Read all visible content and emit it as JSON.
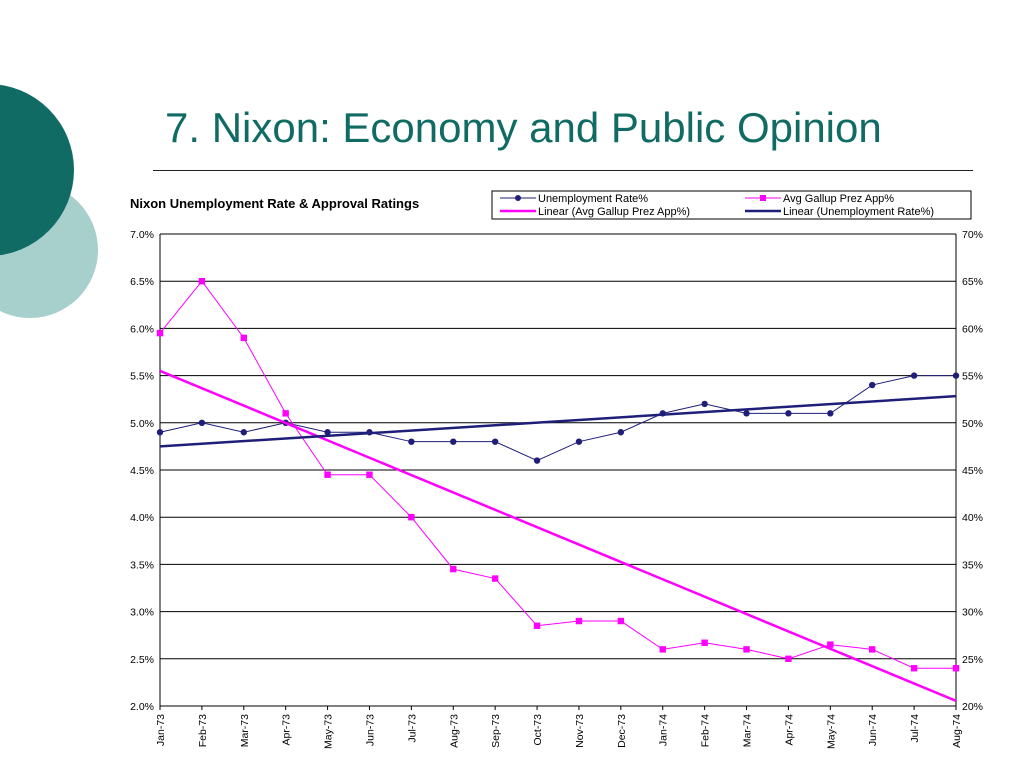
{
  "slide": {
    "title": "7. Nixon: Economy and Public Opinion",
    "accent_color": "#0f6b63",
    "accent_light": "#a7cfcc"
  },
  "chart_data": {
    "type": "line",
    "title": "Nixon Unemployment Rate & Approval Ratings",
    "categories": [
      "Jan-73",
      "Feb-73",
      "Mar-73",
      "Apr-73",
      "May-73",
      "Jun-73",
      "Jul-73",
      "Aug-73",
      "Sep-73",
      "Oct-73",
      "Nov-73",
      "Dec-73",
      "Jan-74",
      "Feb-74",
      "Mar-74",
      "Apr-74",
      "May-74",
      "Jun-74",
      "Jul-74",
      "Aug-74"
    ],
    "y_left": {
      "ylim": [
        2.0,
        7.0
      ],
      "ticks": [
        "2.0%",
        "2.5%",
        "3.0%",
        "3.5%",
        "4.0%",
        "4.5%",
        "5.0%",
        "5.5%",
        "6.0%",
        "6.5%",
        "7.0%"
      ]
    },
    "y_right": {
      "ylim": [
        20,
        70
      ],
      "ticks": [
        "20%",
        "25%",
        "30%",
        "35%",
        "40%",
        "45%",
        "50%",
        "55%",
        "60%",
        "65%",
        "70%"
      ]
    },
    "grid": true,
    "legend_position": "top-right",
    "series": [
      {
        "name": "Unemployment Rate%",
        "axis": "left",
        "color": "#1f1f7a",
        "marker": "circle",
        "values": [
          4.9,
          5.0,
          4.9,
          5.0,
          4.9,
          4.9,
          4.8,
          4.8,
          4.8,
          4.6,
          4.8,
          4.9,
          5.1,
          5.2,
          5.1,
          5.1,
          5.1,
          5.4,
          5.5,
          5.5
        ]
      },
      {
        "name": "Avg Gallup Prez App%",
        "axis": "right",
        "color": "#ff00ff",
        "marker": "square",
        "values": [
          59.5,
          65,
          59,
          51,
          44.5,
          44.5,
          40,
          34.5,
          33.5,
          28.5,
          29,
          29,
          26,
          26.7,
          26,
          25,
          26.5,
          26,
          24,
          24
        ]
      }
    ],
    "trendlines": [
      {
        "name": "Linear (Avg Gallup Prez App%)",
        "of": "Avg Gallup Prez App%",
        "axis": "right",
        "color": "#ff00ff",
        "start": 55.5,
        "slope": -1.84
      },
      {
        "name": "Linear (Unemployment Rate%)",
        "of": "Unemployment Rate%",
        "axis": "left",
        "color": "#1f1f7a",
        "start": 4.75,
        "slope": 0.028
      }
    ],
    "legend": [
      {
        "label": "Unemployment Rate%",
        "kind": "series-marker",
        "color": "#1f1f7a",
        "marker": "circle"
      },
      {
        "label": "Avg Gallup Prez App%",
        "kind": "series-marker",
        "color": "#ff00ff",
        "marker": "square"
      },
      {
        "label": "Linear (Avg Gallup Prez App%)",
        "kind": "trend",
        "color": "#ff00ff"
      },
      {
        "label": "Linear (Unemployment Rate%)",
        "kind": "trend",
        "color": "#1f1f7a"
      }
    ]
  }
}
